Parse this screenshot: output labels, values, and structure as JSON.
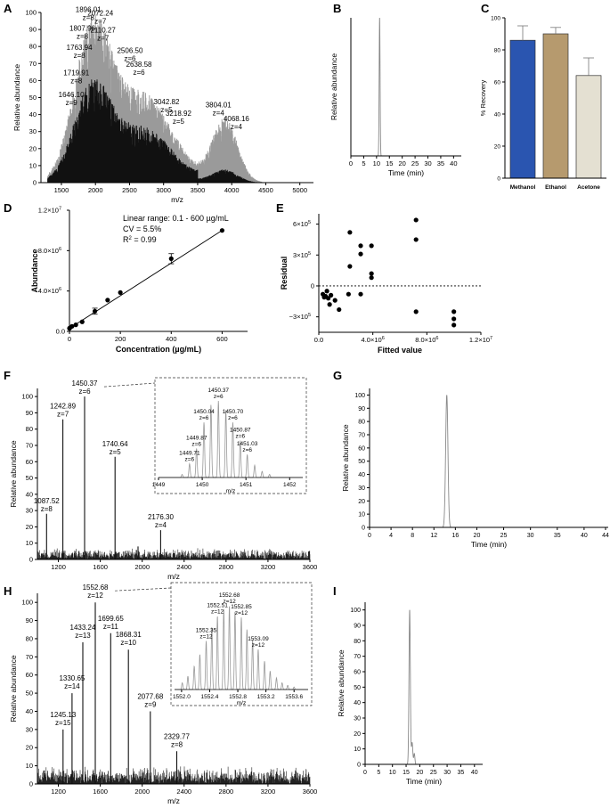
{
  "panels": [
    {
      "id": "A",
      "label": "A"
    },
    {
      "id": "B",
      "label": "B"
    },
    {
      "id": "C",
      "label": "C"
    },
    {
      "id": "D",
      "label": "D"
    },
    {
      "id": "E",
      "label": "E"
    },
    {
      "id": "F",
      "label": "F"
    },
    {
      "id": "G",
      "label": "G"
    },
    {
      "id": "H",
      "label": "H"
    },
    {
      "id": "I",
      "label": "I"
    }
  ],
  "chart_data": [
    {
      "panel": "A",
      "type": "line",
      "xlabel": "m/z",
      "ylabel": "Relative abundance",
      "xlim": [
        1200,
        5200
      ],
      "ylim": [
        0,
        100
      ],
      "xticks": [
        1500,
        2000,
        2500,
        3000,
        3500,
        4000,
        4500,
        5000
      ],
      "yticks": [
        0,
        10,
        20,
        30,
        40,
        50,
        60,
        70,
        80,
        90,
        100
      ],
      "annotations": [
        {
          "text": "1896.01",
          "sub": "z=8",
          "x": 1896.01,
          "y": 97
        },
        {
          "text": "2072.24",
          "sub": "z=7",
          "x": 2072.24,
          "y": 95
        },
        {
          "text": "1807.96",
          "sub": "z=8",
          "x": 1807.96,
          "y": 86
        },
        {
          "text": "2110.27",
          "sub": "z=7",
          "x": 2110.27,
          "y": 85
        },
        {
          "text": "1763.94",
          "sub": "z=8",
          "x": 1763.94,
          "y": 75
        },
        {
          "text": "2506.50",
          "sub": "z=6",
          "x": 2506.5,
          "y": 73
        },
        {
          "text": "2638.58",
          "sub": "z=6",
          "x": 2638.58,
          "y": 65
        },
        {
          "text": "1719.91",
          "sub": "z=8",
          "x": 1719.91,
          "y": 60
        },
        {
          "text": "3042.82",
          "sub": "z=5",
          "x": 3042.82,
          "y": 43
        },
        {
          "text": "3804.01",
          "sub": "z=4",
          "x": 3804.01,
          "y": 41
        },
        {
          "text": "3218.92",
          "sub": "z=5",
          "x": 3218.92,
          "y": 36
        },
        {
          "text": "1646.10",
          "sub": "z=9",
          "x": 1646.1,
          "y": 47
        },
        {
          "text": "4068.16",
          "sub": "z=4",
          "x": 4068.16,
          "y": 33
        }
      ]
    },
    {
      "panel": "B",
      "type": "line",
      "xlabel": "Time (min)",
      "ylabel": "Relative abundance",
      "xlim": [
        0,
        43
      ],
      "ylim": [
        0,
        100
      ],
      "xticks": [
        0,
        5,
        10,
        15,
        20,
        25,
        30,
        35,
        40
      ],
      "peaks": [
        {
          "x": 11.2,
          "y": 100,
          "w": 0.25
        }
      ]
    },
    {
      "panel": "C",
      "type": "bar",
      "ylabel": "% Recovery",
      "ylim": [
        0,
        100
      ],
      "yticks": [
        0,
        20,
        40,
        60,
        80,
        100
      ],
      "categories": [
        "Methanol",
        "Ethanol",
        "Acetone"
      ],
      "values": [
        86,
        90,
        64
      ],
      "errors": [
        9,
        4,
        11
      ],
      "colors": [
        "#2a55b0",
        "#b69a6e",
        "#e4e0d2"
      ]
    },
    {
      "panel": "D",
      "type": "scatter",
      "xlabel": "Concentration (µg/mL)",
      "ylabel": "Abundance",
      "xlim": [
        0,
        700
      ],
      "ylim": [
        0,
        12000000
      ],
      "xticks": [
        0,
        200,
        400,
        600
      ],
      "yticks": [
        {
          "v": 0,
          "t": "0.0"
        },
        {
          "v": 4000000,
          "t": "4.0×10"
        },
        {
          "v": 8000000,
          "t": "8.0×10"
        },
        {
          "v": 12000000,
          "t": "1.2×10"
        }
      ],
      "tick_exponents": {
        "0": "",
        "4000000": "6",
        "8000000": "6",
        "12000000": "7"
      },
      "points": [
        [
          0.1,
          300000
        ],
        [
          1,
          330000
        ],
        [
          10,
          500000
        ],
        [
          25,
          650000
        ],
        [
          50,
          950000
        ],
        [
          100,
          2000000
        ],
        [
          150,
          3100000
        ],
        [
          200,
          3850000
        ],
        [
          400,
          7200000
        ],
        [
          600,
          10000000
        ]
      ],
      "errors": [
        0,
        0,
        0,
        0,
        0,
        300000,
        0,
        0,
        500000,
        0
      ],
      "fit": [
        [
          0,
          300000
        ],
        [
          600,
          10000000
        ]
      ],
      "annotations": [
        "Linear range: 0.1 - 600 µg/mL",
        "CV = 5.5%",
        "R",
        "2",
        "= 0.99"
      ]
    },
    {
      "panel": "E",
      "type": "scatter",
      "xlabel": "Fitted value",
      "ylabel": "Residual",
      "xlim": [
        0,
        12000000
      ],
      "ylim": [
        -450000,
        700000
      ],
      "xticks": [
        {
          "v": 0,
          "t": "0.0"
        },
        {
          "v": 4000000,
          "t": "4.0×10",
          "e": "6"
        },
        {
          "v": 8000000,
          "t": "8.0×10",
          "e": "6"
        },
        {
          "v": 12000000,
          "t": "1.2×10",
          "e": "7"
        }
      ],
      "yticks": [
        {
          "v": -300000,
          "t": "−3×10",
          "e": "5"
        },
        {
          "v": 0,
          "t": "0",
          "e": ""
        },
        {
          "v": 300000,
          "t": "3×10",
          "e": "5"
        },
        {
          "v": 600000,
          "t": "6×10",
          "e": "5"
        }
      ],
      "points": [
        [
          300000,
          -80000
        ],
        [
          400000,
          -110000
        ],
        [
          500000,
          -100000
        ],
        [
          600000,
          -50000
        ],
        [
          700000,
          -120000
        ],
        [
          800000,
          -180000
        ],
        [
          900000,
          -90000
        ],
        [
          1200000,
          -140000
        ],
        [
          1500000,
          -230000
        ],
        [
          2300000,
          520000
        ],
        [
          2300000,
          190000
        ],
        [
          2200000,
          -80000
        ],
        [
          3100000,
          390000
        ],
        [
          3100000,
          310000
        ],
        [
          3100000,
          -80000
        ],
        [
          3900000,
          390000
        ],
        [
          3900000,
          120000
        ],
        [
          3900000,
          80000
        ],
        [
          7200000,
          640000
        ],
        [
          7200000,
          450000
        ],
        [
          7200000,
          -250000
        ],
        [
          10000000,
          -250000
        ],
        [
          10000000,
          -320000
        ],
        [
          10000000,
          -380000
        ]
      ],
      "reference_line": 0
    },
    {
      "panel": "F",
      "type": "line",
      "xlabel": "m/z",
      "ylabel": "Relative abundance",
      "xlim": [
        1000,
        3600
      ],
      "ylim": [
        0,
        105
      ],
      "xticks": [
        1200,
        1600,
        2000,
        2400,
        2800,
        3200,
        3600
      ],
      "yticks": [
        0,
        10,
        20,
        30,
        40,
        50,
        60,
        70,
        80,
        90,
        100
      ],
      "peaks": [
        {
          "x": 1087.52,
          "y": 28
        },
        {
          "x": 1242.89,
          "y": 86
        },
        {
          "x": 1450.37,
          "y": 100
        },
        {
          "x": 1740.64,
          "y": 63
        },
        {
          "x": 1960,
          "y": 8
        },
        {
          "x": 2176.3,
          "y": 18
        }
      ],
      "annotations": [
        {
          "text": "1087.52",
          "sub": "z=8",
          "x": 1087.52,
          "y": 28
        },
        {
          "text": "1242.89",
          "sub": "z=7",
          "x": 1242.89,
          "y": 86
        },
        {
          "text": "1450.37",
          "sub": "z=6",
          "x": 1450.37,
          "y": 100
        },
        {
          "text": "1740.64",
          "sub": "z=5",
          "x": 1740.64,
          "y": 63
        },
        {
          "text": "2176.30",
          "sub": "z=4",
          "x": 2176.3,
          "y": 18
        }
      ],
      "inset": {
        "xlabel": "m/z",
        "xlim": [
          1449,
          1452.3
        ],
        "xticks": [
          1449,
          1450,
          1451,
          1452
        ],
        "peaks": [
          {
            "x": 1449.54,
            "y": 4
          },
          {
            "x": 1449.71,
            "y": 18
          },
          {
            "x": 1449.87,
            "y": 38
          },
          {
            "x": 1450.04,
            "y": 72
          },
          {
            "x": 1450.2,
            "y": 95
          },
          {
            "x": 1450.37,
            "y": 100
          },
          {
            "x": 1450.54,
            "y": 88
          },
          {
            "x": 1450.7,
            "y": 72
          },
          {
            "x": 1450.87,
            "y": 48
          },
          {
            "x": 1451.03,
            "y": 30
          },
          {
            "x": 1451.2,
            "y": 16
          },
          {
            "x": 1451.37,
            "y": 8
          },
          {
            "x": 1451.54,
            "y": 4
          }
        ],
        "annotations": [
          {
            "text": "1450.37",
            "sub": "z=6",
            "x": 1450.37,
            "y": 100
          },
          {
            "text": "1450.04",
            "sub": "z=6",
            "x": 1450.04,
            "y": 72
          },
          {
            "text": "1450.70",
            "sub": "z=6",
            "x": 1450.7,
            "y": 72
          },
          {
            "text": "1449.87",
            "sub": "z=6",
            "x": 1449.87,
            "y": 38
          },
          {
            "text": "1450.87",
            "sub": "z=6",
            "x": 1450.87,
            "y": 48
          },
          {
            "text": "1451.03",
            "sub": "z=6",
            "x": 1451.03,
            "y": 30
          },
          {
            "text": "1449.71",
            "sub": "z=6",
            "x": 1449.71,
            "y": 18
          }
        ]
      }
    },
    {
      "panel": "G",
      "type": "line",
      "xlabel": "Time (min)",
      "ylabel": "Relative abundance",
      "xlim": [
        0,
        44.5
      ],
      "ylim": [
        0,
        105
      ],
      "xticks": [
        0,
        4,
        8,
        12,
        16,
        20,
        25,
        30,
        35,
        40,
        44
      ],
      "yticks": [
        0,
        10,
        20,
        30,
        40,
        50,
        60,
        70,
        80,
        90,
        100
      ],
      "peaks": [
        {
          "x": 14.4,
          "y": 100,
          "w": 0.3
        }
      ]
    },
    {
      "panel": "H",
      "type": "line",
      "xlabel": "m/z",
      "ylabel": "Relative abundance",
      "xlim": [
        1000,
        3600
      ],
      "ylim": [
        0,
        105
      ],
      "xticks": [
        1200,
        1600,
        2000,
        2400,
        2800,
        3200,
        3600
      ],
      "yticks": [
        0,
        10,
        20,
        30,
        40,
        50,
        60,
        70,
        80,
        90,
        100
      ],
      "peaks": [
        {
          "x": 1245.13,
          "y": 30
        },
        {
          "x": 1330.65,
          "y": 50
        },
        {
          "x": 1433.24,
          "y": 78
        },
        {
          "x": 1552.68,
          "y": 100
        },
        {
          "x": 1699.65,
          "y": 83
        },
        {
          "x": 1868.31,
          "y": 74
        },
        {
          "x": 2077.68,
          "y": 40
        },
        {
          "x": 2329.77,
          "y": 18
        }
      ],
      "annotations": [
        {
          "text": "1245.13",
          "sub": "z=15",
          "x": 1245.13,
          "y": 30
        },
        {
          "text": "1330.65",
          "sub": "z=14",
          "x": 1330.65,
          "y": 50
        },
        {
          "text": "1433.24",
          "sub": "z=13",
          "x": 1433.24,
          "y": 78
        },
        {
          "text": "1552.68",
          "sub": "z=12",
          "x": 1552.68,
          "y": 100
        },
        {
          "text": "1699.65",
          "sub": "z=11",
          "x": 1699.65,
          "y": 83
        },
        {
          "text": "1868.31",
          "sub": "z=10",
          "x": 1868.31,
          "y": 74
        },
        {
          "text": "2077.68",
          "sub": "z=9",
          "x": 2077.68,
          "y": 40
        },
        {
          "text": "2329.77",
          "sub": "z=8",
          "x": 2329.77,
          "y": 18
        }
      ],
      "inset": {
        "xlabel": "m/z",
        "xlim": [
          1551.9,
          1553.8
        ],
        "xticks": [
          1552.0,
          1552.4,
          1552.8,
          1553.2,
          1553.6
        ],
        "tick_labels": [
          "1552.0",
          "1552.4",
          "1552.8",
          "1553.2",
          "1553.6"
        ],
        "peaks": [
          {
            "x": 1552.01,
            "y": 8
          },
          {
            "x": 1552.09,
            "y": 16
          },
          {
            "x": 1552.18,
            "y": 28
          },
          {
            "x": 1552.26,
            "y": 42
          },
          {
            "x": 1552.35,
            "y": 58
          },
          {
            "x": 1552.43,
            "y": 75
          },
          {
            "x": 1552.51,
            "y": 88
          },
          {
            "x": 1552.6,
            "y": 96
          },
          {
            "x": 1552.68,
            "y": 100
          },
          {
            "x": 1552.76,
            "y": 94
          },
          {
            "x": 1552.85,
            "y": 86
          },
          {
            "x": 1552.93,
            "y": 72
          },
          {
            "x": 1553.01,
            "y": 60
          },
          {
            "x": 1553.09,
            "y": 48
          },
          {
            "x": 1553.18,
            "y": 34
          },
          {
            "x": 1553.26,
            "y": 22
          },
          {
            "x": 1553.35,
            "y": 14
          },
          {
            "x": 1553.43,
            "y": 8
          },
          {
            "x": 1553.51,
            "y": 5
          },
          {
            "x": 1553.6,
            "y": 3
          }
        ],
        "annotations": [
          {
            "text": "1552.68",
            "sub": "z=12",
            "x": 1552.68,
            "y": 100
          },
          {
            "text": "1552.51",
            "sub": "z=12",
            "x": 1552.51,
            "y": 88
          },
          {
            "text": "1552.85",
            "sub": "z=12",
            "x": 1552.85,
            "y": 86
          },
          {
            "text": "1552.35",
            "sub": "z=12",
            "x": 1552.35,
            "y": 58
          },
          {
            "text": "1553.09",
            "sub": "z=12",
            "x": 1553.09,
            "y": 48
          }
        ]
      }
    },
    {
      "panel": "I",
      "type": "line",
      "xlabel": "Time (min)",
      "ylabel": "Relative abundance",
      "xlim": [
        0,
        43
      ],
      "ylim": [
        0,
        105
      ],
      "xticks": [
        0,
        5,
        10,
        15,
        20,
        25,
        30,
        35,
        40
      ],
      "yticks": [
        0,
        10,
        20,
        30,
        40,
        50,
        60,
        70,
        80,
        90,
        100
      ],
      "peaks": [
        {
          "x": 16.3,
          "y": 100,
          "w": 0.35
        },
        {
          "x": 17.2,
          "y": 14,
          "w": 0.35
        },
        {
          "x": 18.0,
          "y": 7,
          "w": 0.3
        }
      ]
    }
  ]
}
